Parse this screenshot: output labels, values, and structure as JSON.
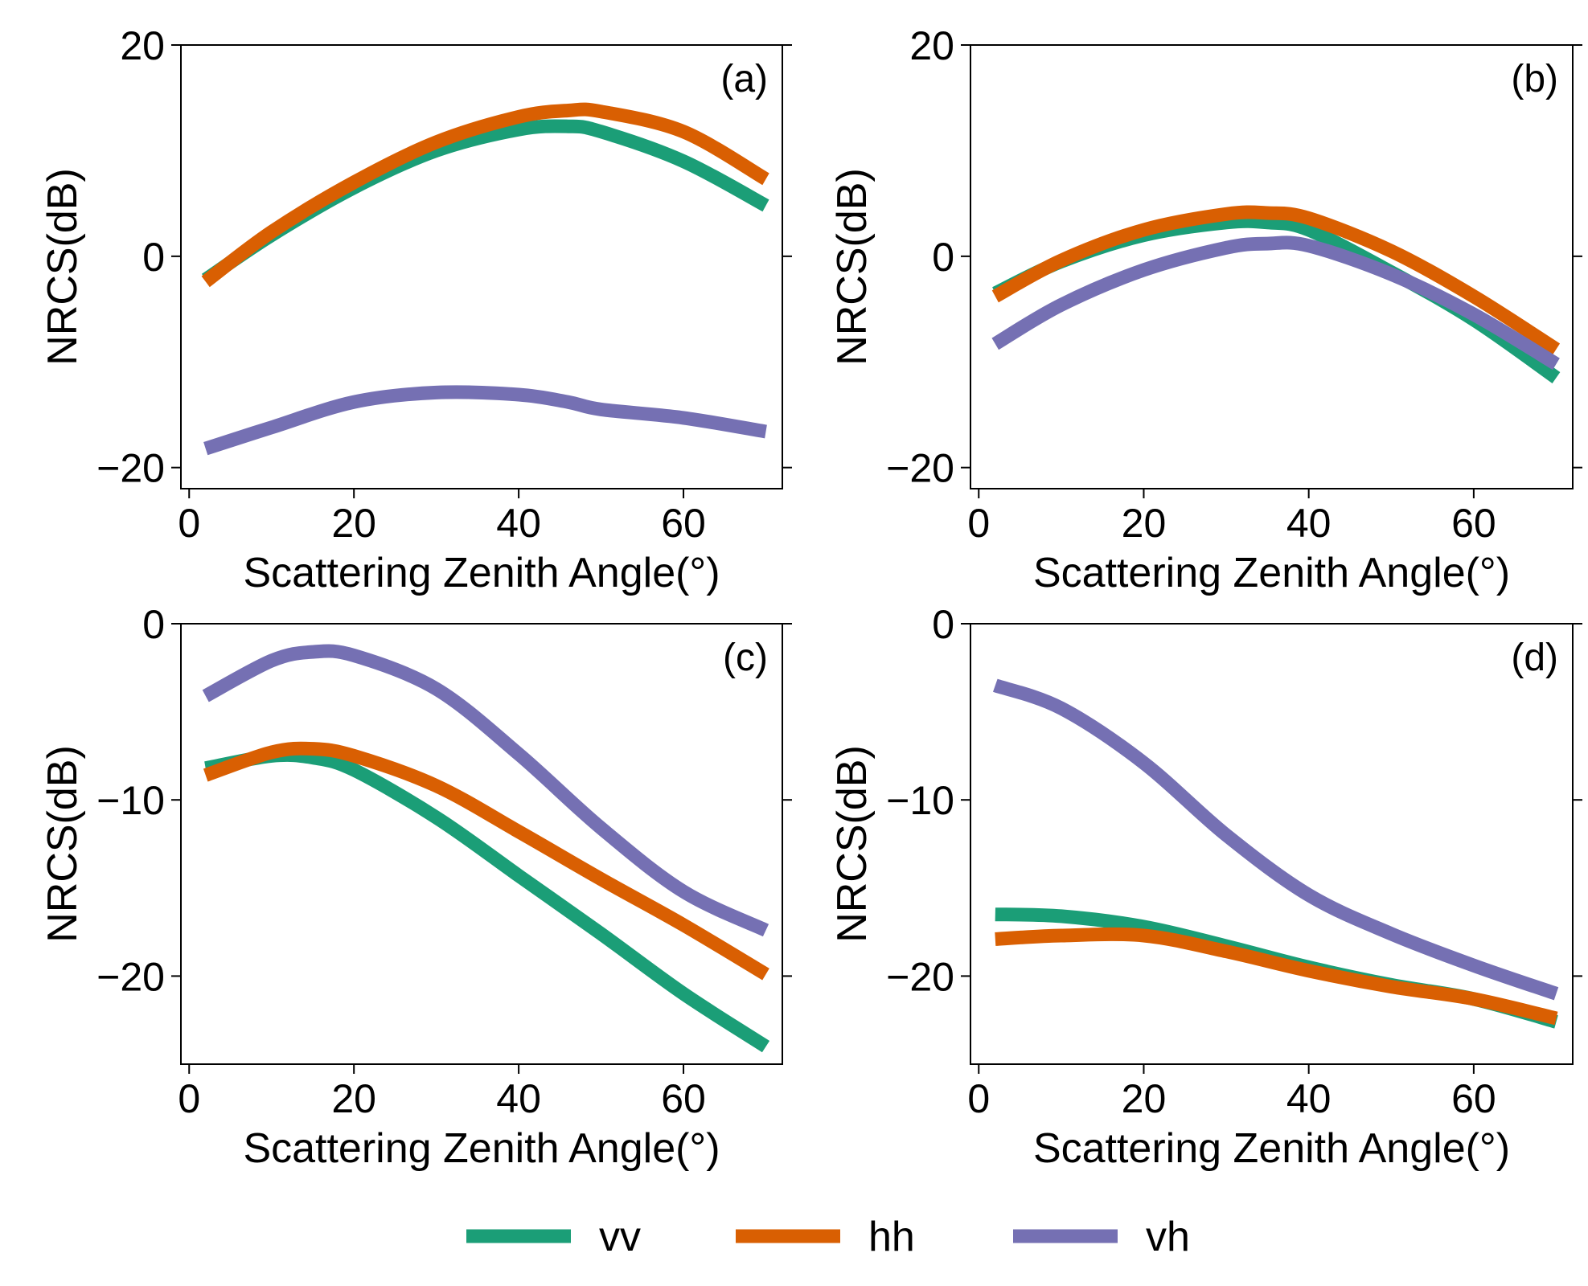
{
  "colors": {
    "vv": "#1b9e77",
    "hh": "#d95f02",
    "vh": "#7570b3"
  },
  "legend": [
    {
      "key": "vv",
      "label": "vv"
    },
    {
      "key": "hh",
      "label": "hh"
    },
    {
      "key": "vh",
      "label": "vh"
    }
  ],
  "chart_data": [
    {
      "type": "line",
      "panel_label": "(a)",
      "xlabel": "Scattering Zenith Angle(°)",
      "ylabel": "NRCS(dB)",
      "xlim": [
        -1,
        72
      ],
      "ylim": [
        -22,
        20
      ],
      "xticks": [
        0,
        20,
        40,
        60
      ],
      "yticks": [
        20,
        0,
        -20
      ],
      "x": [
        2,
        10,
        20,
        30,
        40,
        46,
        50,
        60,
        70
      ],
      "series": [
        {
          "name": "vv",
          "values": [
            -2.2,
            2.0,
            6.5,
            10.0,
            12.0,
            12.3,
            11.8,
            9.0,
            4.8
          ]
        },
        {
          "name": "hh",
          "values": [
            -2.4,
            2.3,
            7.0,
            10.8,
            13.2,
            13.8,
            13.7,
            11.8,
            7.3
          ]
        },
        {
          "name": "vh",
          "values": [
            -18.2,
            -16.2,
            -13.8,
            -12.9,
            -13.1,
            -13.8,
            -14.5,
            -15.3,
            -16.6
          ]
        }
      ]
    },
    {
      "type": "line",
      "panel_label": "(b)",
      "xlabel": "Scattering Zenith Angle(°)",
      "ylabel": "NRCS(dB)",
      "xlim": [
        -1,
        72
      ],
      "ylim": [
        -22,
        20
      ],
      "xticks": [
        0,
        20,
        40,
        60
      ],
      "yticks": [
        20,
        0,
        -20
      ],
      "x": [
        2,
        10,
        20,
        30,
        35,
        40,
        50,
        60,
        70
      ],
      "series": [
        {
          "name": "vv",
          "values": [
            -3.5,
            -0.5,
            2.0,
            3.2,
            3.2,
            2.5,
            -1.5,
            -6.0,
            -11.5
          ]
        },
        {
          "name": "hh",
          "values": [
            -3.8,
            -0.4,
            2.5,
            4.0,
            4.1,
            3.6,
            0.5,
            -3.8,
            -8.8
          ]
        },
        {
          "name": "vh",
          "values": [
            -8.3,
            -4.6,
            -1.3,
            0.8,
            1.2,
            1.0,
            -1.7,
            -5.5,
            -10.2
          ]
        }
      ]
    },
    {
      "type": "line",
      "panel_label": "(c)",
      "xlabel": "Scattering Zenith Angle(°)",
      "ylabel": "NRCS(dB)",
      "xlim": [
        -1,
        72
      ],
      "ylim": [
        -25,
        0
      ],
      "xticks": [
        0,
        20,
        40,
        60
      ],
      "yticks": [
        0,
        -10,
        -20
      ],
      "x": [
        2,
        10,
        15,
        20,
        30,
        40,
        50,
        60,
        70
      ],
      "series": [
        {
          "name": "vv",
          "values": [
            -8.2,
            -7.5,
            -7.6,
            -8.3,
            -11.0,
            -14.3,
            -17.6,
            -21.0,
            -24.0
          ]
        },
        {
          "name": "hh",
          "values": [
            -8.6,
            -7.3,
            -7.1,
            -7.5,
            -9.2,
            -11.8,
            -14.5,
            -17.1,
            -19.9
          ]
        },
        {
          "name": "vh",
          "values": [
            -4.1,
            -2.1,
            -1.6,
            -1.8,
            -3.7,
            -7.4,
            -11.6,
            -15.2,
            -17.4
          ]
        }
      ]
    },
    {
      "type": "line",
      "panel_label": "(d)",
      "xlabel": "Scattering Zenith Angle(°)",
      "ylabel": "NRCS(dB)",
      "xlim": [
        -1,
        72
      ],
      "ylim": [
        -25,
        0
      ],
      "xticks": [
        0,
        20,
        40,
        60
      ],
      "yticks": [
        0,
        -10,
        -20
      ],
      "x": [
        2,
        10,
        20,
        30,
        40,
        50,
        60,
        70
      ],
      "series": [
        {
          "name": "vv",
          "values": [
            -16.5,
            -16.6,
            -17.2,
            -18.3,
            -19.5,
            -20.5,
            -21.3,
            -22.6
          ]
        },
        {
          "name": "hh",
          "values": [
            -17.9,
            -17.7,
            -17.7,
            -18.6,
            -19.7,
            -20.6,
            -21.3,
            -22.4
          ]
        },
        {
          "name": "vh",
          "values": [
            -3.5,
            -4.8,
            -7.9,
            -12.0,
            -15.4,
            -17.6,
            -19.4,
            -21.0
          ]
        }
      ]
    }
  ]
}
